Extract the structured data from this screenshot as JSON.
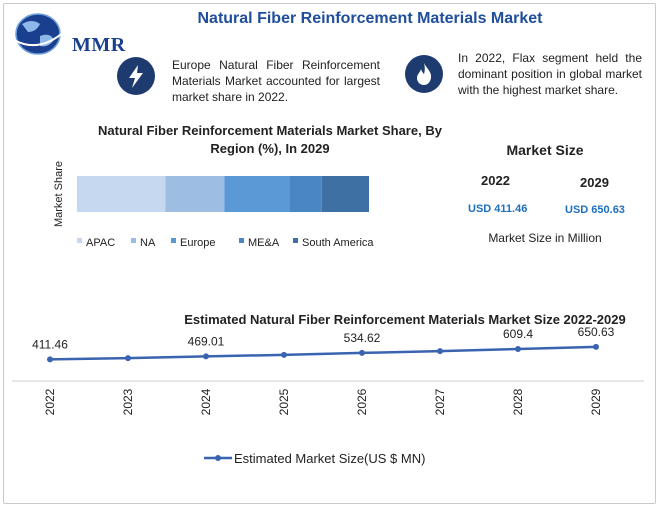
{
  "header": {
    "title": "Natural Fiber Reinforcement Materials Market",
    "logo_text": "MMR"
  },
  "info": [
    {
      "icon": "lightning-icon",
      "text": "Europe Natural Fiber Reinforcement Materials Market accounted for largest market share in 2022."
    },
    {
      "icon": "flame-icon",
      "text": "In 2022, Flax segment held the dominant position in global market with the highest market share."
    }
  ],
  "market_size": {
    "title": "Market Size",
    "year_a": "2022",
    "year_b": "2029",
    "value_a": "USD 411.46",
    "value_b": "USD 650.63",
    "note": "Market Size in Million"
  },
  "colors": {
    "title_blue": "#1f4e9c",
    "icon_navy": "#1d3b6e",
    "value_blue": "#1f6fbf",
    "line_blue": "#3a64b0"
  },
  "chart_data": [
    {
      "type": "bar",
      "title": "Natural Fiber Reinforcement Materials Market Share, By Region (%), In 2029",
      "ylabel": "Market Share",
      "orientation": "horizontal-stacked",
      "legend_position": "bottom",
      "series": [
        {
          "name": "APAC",
          "value": 30,
          "color": "#c5d8ef"
        },
        {
          "name": "NA",
          "value": 20,
          "color": "#9dbde3"
        },
        {
          "name": "Europe",
          "value": 22,
          "color": "#5a98d6"
        },
        {
          "name": "ME&A",
          "value": 11,
          "color": "#4a86c2"
        },
        {
          "name": "South America",
          "value": 16,
          "color": "#3f70a3"
        }
      ]
    },
    {
      "type": "line",
      "title": "Estimated Natural Fiber Reinforcement Materials Market Size 2022-2029",
      "x": [
        "2022",
        "2023",
        "2024",
        "2025",
        "2026",
        "2027",
        "2028",
        "2029"
      ],
      "series": [
        {
          "name": "Estimated Market Size(US $ MN)",
          "values": [
            411.46,
            436,
            469.01,
            498,
            534.62,
            570,
            609.4,
            650.63
          ]
        }
      ],
      "data_labels": {
        "0": "411.46",
        "2": "469.01",
        "4": "534.62",
        "6": "609.4",
        "7": "650.63"
      },
      "ylim": [
        0,
        4000
      ],
      "legend_position": "bottom"
    }
  ]
}
